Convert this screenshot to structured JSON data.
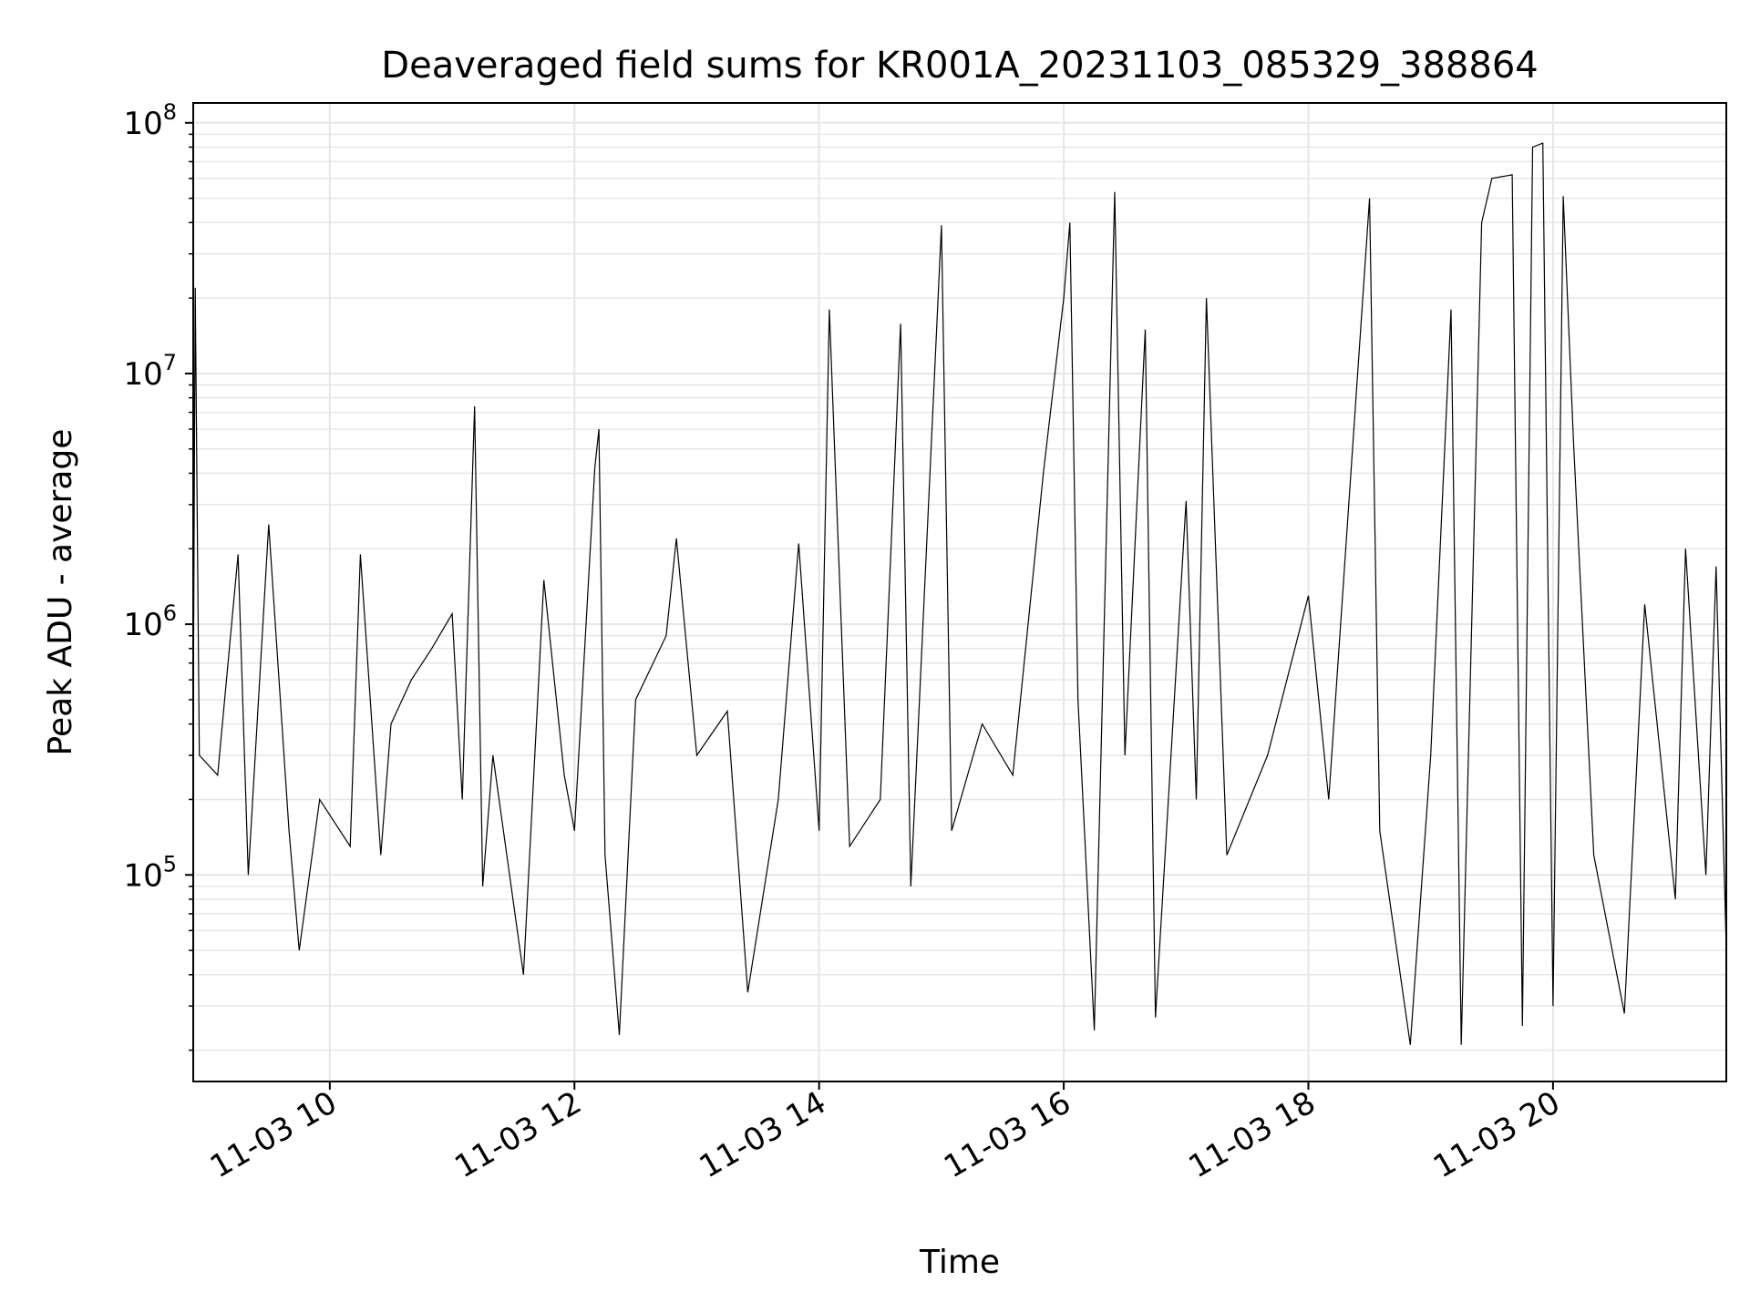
{
  "chart_data": {
    "type": "line",
    "title": "Deaveraged field sums for KR001A_20231103_085329_388864",
    "xlabel": "Time",
    "ylabel": "Peak ADU - average",
    "x_axis": {
      "kind": "datetime",
      "range": [
        "2023-11-03 08:53",
        "2023-11-03 21:25"
      ],
      "ticks": [
        "2023-11-03 10:00",
        "2023-11-03 12:00",
        "2023-11-03 14:00",
        "2023-11-03 16:00",
        "2023-11-03 18:00",
        "2023-11-03 20:00"
      ],
      "tick_labels": [
        "11-03 10",
        "11-03 12",
        "11-03 14",
        "11-03 16",
        "11-03 18",
        "11-03 20"
      ]
    },
    "y_axis": {
      "scale": "log",
      "range": [
        15000,
        120000000
      ],
      "ticks": [
        100000,
        1000000,
        10000000,
        100000000
      ],
      "tick_labels": [
        {
          "base": "10",
          "exp": "5"
        },
        {
          "base": "10",
          "exp": "6"
        },
        {
          "base": "10",
          "exp": "7"
        },
        {
          "base": "10",
          "exp": "8"
        }
      ]
    },
    "grid": true,
    "line_color": "#000000",
    "grid_color": "#e6e6e6",
    "series": [
      {
        "points": [
          [
            "2023-11-03 08:53",
            400000
          ],
          [
            "2023-11-03 08:54",
            22000000
          ],
          [
            "2023-11-03 08:56",
            300000
          ],
          [
            "2023-11-03 09:05",
            250000
          ],
          [
            "2023-11-03 09:15",
            1900000
          ],
          [
            "2023-11-03 09:20",
            100000
          ],
          [
            "2023-11-03 09:30",
            2500000
          ],
          [
            "2023-11-03 09:40",
            150000
          ],
          [
            "2023-11-03 09:45",
            50000
          ],
          [
            "2023-11-03 09:55",
            200000
          ],
          [
            "2023-11-03 10:10",
            130000
          ],
          [
            "2023-11-03 10:15",
            1900000
          ],
          [
            "2023-11-03 10:25",
            120000
          ],
          [
            "2023-11-03 10:30",
            400000
          ],
          [
            "2023-11-03 10:40",
            600000
          ],
          [
            "2023-11-03 10:50",
            800000
          ],
          [
            "2023-11-03 11:00",
            1100000
          ],
          [
            "2023-11-03 11:05",
            200000
          ],
          [
            "2023-11-03 11:11",
            7400000
          ],
          [
            "2023-11-03 11:15",
            90000
          ],
          [
            "2023-11-03 11:20",
            300000
          ],
          [
            "2023-11-03 11:35",
            40000
          ],
          [
            "2023-11-03 11:45",
            1500000
          ],
          [
            "2023-11-03 11:55",
            250000
          ],
          [
            "2023-11-03 12:00",
            150000
          ],
          [
            "2023-11-03 12:10",
            4200000
          ],
          [
            "2023-11-03 12:12",
            6000000
          ],
          [
            "2023-11-03 12:15",
            120000
          ],
          [
            "2023-11-03 12:22",
            23000
          ],
          [
            "2023-11-03 12:30",
            500000
          ],
          [
            "2023-11-03 12:45",
            900000
          ],
          [
            "2023-11-03 12:50",
            2200000
          ],
          [
            "2023-11-03 13:00",
            300000
          ],
          [
            "2023-11-03 13:15",
            450000
          ],
          [
            "2023-11-03 13:25",
            34000
          ],
          [
            "2023-11-03 13:40",
            200000
          ],
          [
            "2023-11-03 13:50",
            2100000
          ],
          [
            "2023-11-03 14:00",
            150000
          ],
          [
            "2023-11-03 14:05",
            18000000
          ],
          [
            "2023-11-03 14:15",
            130000
          ],
          [
            "2023-11-03 14:30",
            200000
          ],
          [
            "2023-11-03 14:40",
            15800000
          ],
          [
            "2023-11-03 14:45",
            90000
          ],
          [
            "2023-11-03 15:00",
            39000000
          ],
          [
            "2023-11-03 15:05",
            150000
          ],
          [
            "2023-11-03 15:20",
            400000
          ],
          [
            "2023-11-03 15:35",
            250000
          ],
          [
            "2023-11-03 15:50",
            4000000
          ],
          [
            "2023-11-03 16:00",
            20000000
          ],
          [
            "2023-11-03 16:03",
            40000000
          ],
          [
            "2023-11-03 16:07",
            500000
          ],
          [
            "2023-11-03 16:15",
            24000
          ],
          [
            "2023-11-03 16:25",
            53000000
          ],
          [
            "2023-11-03 16:30",
            300000
          ],
          [
            "2023-11-03 16:40",
            15000000
          ],
          [
            "2023-11-03 16:45",
            27000
          ],
          [
            "2023-11-03 17:00",
            3100000
          ],
          [
            "2023-11-03 17:05",
            200000
          ],
          [
            "2023-11-03 17:10",
            20000000
          ],
          [
            "2023-11-03 17:20",
            120000
          ],
          [
            "2023-11-03 17:40",
            300000
          ],
          [
            "2023-11-03 18:00",
            1300000
          ],
          [
            "2023-11-03 18:10",
            200000
          ],
          [
            "2023-11-03 18:30",
            50000000
          ],
          [
            "2023-11-03 18:35",
            150000
          ],
          [
            "2023-11-03 18:50",
            21000
          ],
          [
            "2023-11-03 19:00",
            300000
          ],
          [
            "2023-11-03 19:10",
            18000000
          ],
          [
            "2023-11-03 19:15",
            21000
          ],
          [
            "2023-11-03 19:25",
            40000000
          ],
          [
            "2023-11-03 19:30",
            60000000
          ],
          [
            "2023-11-03 19:40",
            62000000
          ],
          [
            "2023-11-03 19:45",
            25000
          ],
          [
            "2023-11-03 19:50",
            80000000
          ],
          [
            "2023-11-03 19:55",
            83000000
          ],
          [
            "2023-11-03 20:00",
            30000
          ],
          [
            "2023-11-03 20:05",
            51000000
          ],
          [
            "2023-11-03 20:10",
            5500000
          ],
          [
            "2023-11-03 20:20",
            120000
          ],
          [
            "2023-11-03 20:35",
            28000
          ],
          [
            "2023-11-03 20:45",
            1200000
          ],
          [
            "2023-11-03 21:00",
            80000
          ],
          [
            "2023-11-03 21:05",
            2000000
          ],
          [
            "2023-11-03 21:15",
            100000
          ],
          [
            "2023-11-03 21:20",
            1700000
          ],
          [
            "2023-11-03 21:25",
            50000
          ]
        ]
      }
    ]
  }
}
